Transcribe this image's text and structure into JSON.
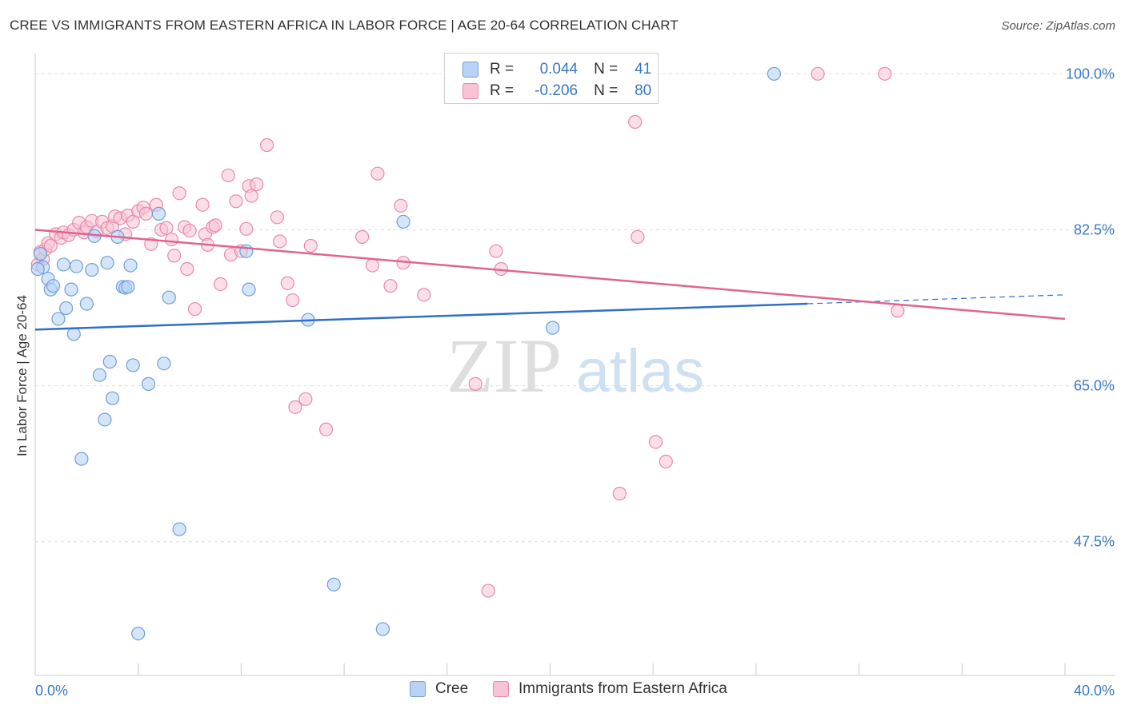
{
  "title": "CREE VS IMMIGRANTS FROM EASTERN AFRICA IN LABOR FORCE | AGE 20-64 CORRELATION CHART",
  "source": "Source: ZipAtlas.com",
  "watermark": {
    "zip": "ZIP",
    "atlas": "atlas"
  },
  "legend": {
    "cree": {
      "r_label": "R =",
      "r_value": "0.044",
      "n_label": "N =",
      "n_value": "41"
    },
    "immigrants": {
      "r_label": "R =",
      "r_value": "-0.206",
      "n_label": "N =",
      "n_value": "80"
    }
  },
  "bottom_legend": {
    "cree": "Cree",
    "immigrants": "Immigrants from Eastern Africa"
  },
  "colors": {
    "cree_fill": "#b8d3f5",
    "cree_stroke": "#6f9fd9",
    "cree_line": "#2f6fc9",
    "imm_fill": "#f8c3d4",
    "imm_stroke": "#e88aaa",
    "imm_line": "#e0648f",
    "tick_label": "#3a78c4"
  },
  "chart_data": {
    "type": "scatter",
    "xlabel": "",
    "ylabel": "In Labor Force | Age 20-64",
    "xlim": [
      0,
      40
    ],
    "ylim": [
      32.5,
      102
    ],
    "x_tick_labels": [
      "0.0%",
      "40.0%"
    ],
    "y_ticks": [
      47.5,
      65.0,
      82.5,
      100.0
    ],
    "y_tick_labels": [
      "47.5%",
      "65.0%",
      "82.5%",
      "100.0%"
    ],
    "series": [
      {
        "name": "Cree",
        "r": 0.044,
        "n": 41,
        "trend": {
          "x0": 0,
          "y0": 71.3,
          "x1": 30,
          "y1": 74.2,
          "dash_x1": 40,
          "dash_y1": 75.2
        },
        "points": [
          [
            0.2,
            79.8
          ],
          [
            0.3,
            78.3
          ],
          [
            0.5,
            77.0
          ],
          [
            0.6,
            75.8
          ],
          [
            0.7,
            76.2
          ],
          [
            0.9,
            72.5
          ],
          [
            1.1,
            78.6
          ],
          [
            1.2,
            73.7
          ],
          [
            1.4,
            75.8
          ],
          [
            1.5,
            70.8
          ],
          [
            1.6,
            78.4
          ],
          [
            1.8,
            56.8
          ],
          [
            2.0,
            74.2
          ],
          [
            2.2,
            78.0
          ],
          [
            2.3,
            81.8
          ],
          [
            2.5,
            66.2
          ],
          [
            2.7,
            61.2
          ],
          [
            2.8,
            78.8
          ],
          [
            2.9,
            67.7
          ],
          [
            3.0,
            63.6
          ],
          [
            3.2,
            81.7
          ],
          [
            3.4,
            76.1
          ],
          [
            3.5,
            76.0
          ],
          [
            3.6,
            76.1
          ],
          [
            3.7,
            78.5
          ],
          [
            3.8,
            67.3
          ],
          [
            4.0,
            37.2
          ],
          [
            4.4,
            65.2
          ],
          [
            4.8,
            84.3
          ],
          [
            5.0,
            67.5
          ],
          [
            5.2,
            74.9
          ],
          [
            5.6,
            48.9
          ],
          [
            8.2,
            80.1
          ],
          [
            8.3,
            75.8
          ],
          [
            10.6,
            72.4
          ],
          [
            11.6,
            42.7
          ],
          [
            13.5,
            37.7
          ],
          [
            14.3,
            83.4
          ],
          [
            20.1,
            71.5
          ],
          [
            28.7,
            100.0
          ],
          [
            0.1,
            78.1
          ]
        ]
      },
      {
        "name": "Immigrants from Eastern Africa",
        "r": -0.206,
        "n": 80,
        "trend": {
          "x0": 0,
          "y0": 82.5,
          "x1": 40,
          "y1": 72.5
        },
        "points": [
          [
            0.2,
            80.0
          ],
          [
            0.3,
            79.2
          ],
          [
            0.4,
            80.3
          ],
          [
            0.5,
            81.0
          ],
          [
            0.6,
            80.7
          ],
          [
            0.8,
            82.0
          ],
          [
            1.0,
            81.6
          ],
          [
            1.1,
            82.2
          ],
          [
            1.3,
            81.9
          ],
          [
            1.5,
            82.5
          ],
          [
            1.7,
            83.3
          ],
          [
            1.9,
            82.2
          ],
          [
            2.0,
            82.8
          ],
          [
            2.2,
            83.5
          ],
          [
            2.4,
            82.3
          ],
          [
            2.6,
            83.4
          ],
          [
            2.8,
            82.7
          ],
          [
            3.0,
            82.9
          ],
          [
            3.1,
            84.0
          ],
          [
            3.3,
            83.8
          ],
          [
            3.5,
            82.0
          ],
          [
            3.6,
            84.1
          ],
          [
            3.8,
            83.4
          ],
          [
            4.0,
            84.6
          ],
          [
            4.2,
            85.0
          ],
          [
            4.3,
            84.3
          ],
          [
            4.5,
            80.9
          ],
          [
            4.7,
            85.3
          ],
          [
            4.9,
            82.5
          ],
          [
            5.1,
            82.7
          ],
          [
            5.3,
            81.4
          ],
          [
            5.4,
            79.6
          ],
          [
            5.6,
            86.6
          ],
          [
            5.8,
            82.8
          ],
          [
            5.9,
            78.1
          ],
          [
            6.0,
            82.4
          ],
          [
            6.2,
            73.6
          ],
          [
            6.5,
            85.3
          ],
          [
            6.6,
            82.0
          ],
          [
            6.7,
            80.8
          ],
          [
            6.9,
            82.8
          ],
          [
            7.0,
            83.0
          ],
          [
            7.2,
            76.4
          ],
          [
            7.5,
            88.6
          ],
          [
            7.6,
            79.7
          ],
          [
            7.8,
            85.7
          ],
          [
            8.0,
            80.1
          ],
          [
            8.2,
            82.6
          ],
          [
            8.3,
            87.4
          ],
          [
            8.4,
            86.3
          ],
          [
            8.6,
            87.6
          ],
          [
            9.0,
            92.0
          ],
          [
            9.4,
            83.9
          ],
          [
            9.5,
            81.2
          ],
          [
            9.8,
            76.5
          ],
          [
            10.0,
            74.6
          ],
          [
            10.1,
            62.6
          ],
          [
            10.5,
            63.5
          ],
          [
            10.7,
            80.7
          ],
          [
            11.3,
            60.1
          ],
          [
            12.7,
            81.7
          ],
          [
            13.1,
            78.5
          ],
          [
            13.3,
            88.8
          ],
          [
            13.8,
            76.2
          ],
          [
            14.2,
            85.2
          ],
          [
            14.3,
            78.8
          ],
          [
            15.1,
            75.2
          ],
          [
            17.1,
            65.2
          ],
          [
            17.6,
            42.0
          ],
          [
            17.9,
            80.1
          ],
          [
            18.1,
            78.1
          ],
          [
            22.7,
            52.9
          ],
          [
            23.3,
            94.6
          ],
          [
            23.4,
            81.7
          ],
          [
            24.1,
            58.7
          ],
          [
            24.5,
            56.5
          ],
          [
            30.4,
            100.0
          ],
          [
            33.0,
            100.0
          ],
          [
            33.5,
            73.4
          ],
          [
            0.1,
            78.6
          ]
        ]
      }
    ]
  }
}
